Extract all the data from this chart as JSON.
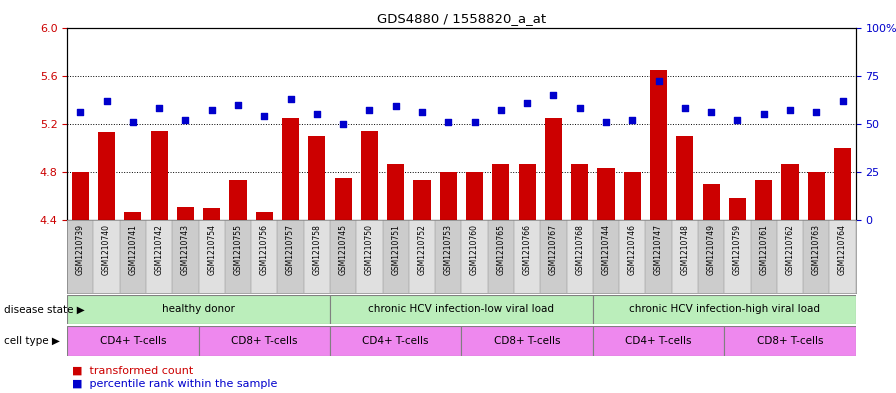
{
  "title": "GDS4880 / 1558820_a_at",
  "samples": [
    "GSM1210739",
    "GSM1210740",
    "GSM1210741",
    "GSM1210742",
    "GSM1210743",
    "GSM1210754",
    "GSM1210755",
    "GSM1210756",
    "GSM1210757",
    "GSM1210758",
    "GSM1210745",
    "GSM1210750",
    "GSM1210751",
    "GSM1210752",
    "GSM1210753",
    "GSM1210760",
    "GSM1210765",
    "GSM1210766",
    "GSM1210767",
    "GSM1210768",
    "GSM1210744",
    "GSM1210746",
    "GSM1210747",
    "GSM1210748",
    "GSM1210749",
    "GSM1210759",
    "GSM1210761",
    "GSM1210762",
    "GSM1210763",
    "GSM1210764"
  ],
  "bar_values": [
    4.8,
    5.13,
    4.47,
    5.14,
    4.51,
    4.5,
    4.73,
    4.47,
    5.25,
    5.1,
    4.75,
    5.14,
    4.87,
    4.73,
    4.8,
    4.8,
    4.87,
    4.87,
    5.25,
    4.87,
    4.83,
    4.8,
    5.65,
    5.1,
    4.7,
    4.58,
    4.73,
    4.87,
    4.8,
    5.0
  ],
  "dot_values": [
    56,
    62,
    51,
    58,
    52,
    57,
    60,
    54,
    63,
    55,
    50,
    57,
    59,
    56,
    51,
    51,
    57,
    61,
    65,
    58,
    51,
    52,
    72,
    58,
    56,
    52,
    55,
    57,
    56,
    62
  ],
  "ylim_left": [
    4.4,
    6.0
  ],
  "ylim_right": [
    0,
    100
  ],
  "yticks_left": [
    4.4,
    4.8,
    5.2,
    5.6,
    6.0
  ],
  "yticks_right": [
    0,
    25,
    50,
    75,
    100
  ],
  "ytick_labels_right": [
    "0",
    "25",
    "50",
    "75",
    "100%"
  ],
  "bar_color": "#CC0000",
  "dot_color": "#0000CC",
  "ds_groups": [
    {
      "label": "healthy donor",
      "start": 0,
      "end": 9,
      "color": "#bbeebb"
    },
    {
      "label": "chronic HCV infection-low viral load",
      "start": 10,
      "end": 19,
      "color": "#bbeebb"
    },
    {
      "label": "chronic HCV infection-high viral load",
      "start": 20,
      "end": 29,
      "color": "#bbeebb"
    }
  ],
  "ct_groups": [
    {
      "label": "CD4+ T-cells",
      "start": 0,
      "end": 4,
      "color": "#ee88ee"
    },
    {
      "label": "CD8+ T-cells",
      "start": 5,
      "end": 9,
      "color": "#ee88ee"
    },
    {
      "label": "CD4+ T-cells",
      "start": 10,
      "end": 14,
      "color": "#ee88ee"
    },
    {
      "label": "CD8+ T-cells",
      "start": 15,
      "end": 19,
      "color": "#ee88ee"
    },
    {
      "label": "CD4+ T-cells",
      "start": 20,
      "end": 24,
      "color": "#ee88ee"
    },
    {
      "label": "CD8+ T-cells",
      "start": 25,
      "end": 29,
      "color": "#ee88ee"
    }
  ]
}
